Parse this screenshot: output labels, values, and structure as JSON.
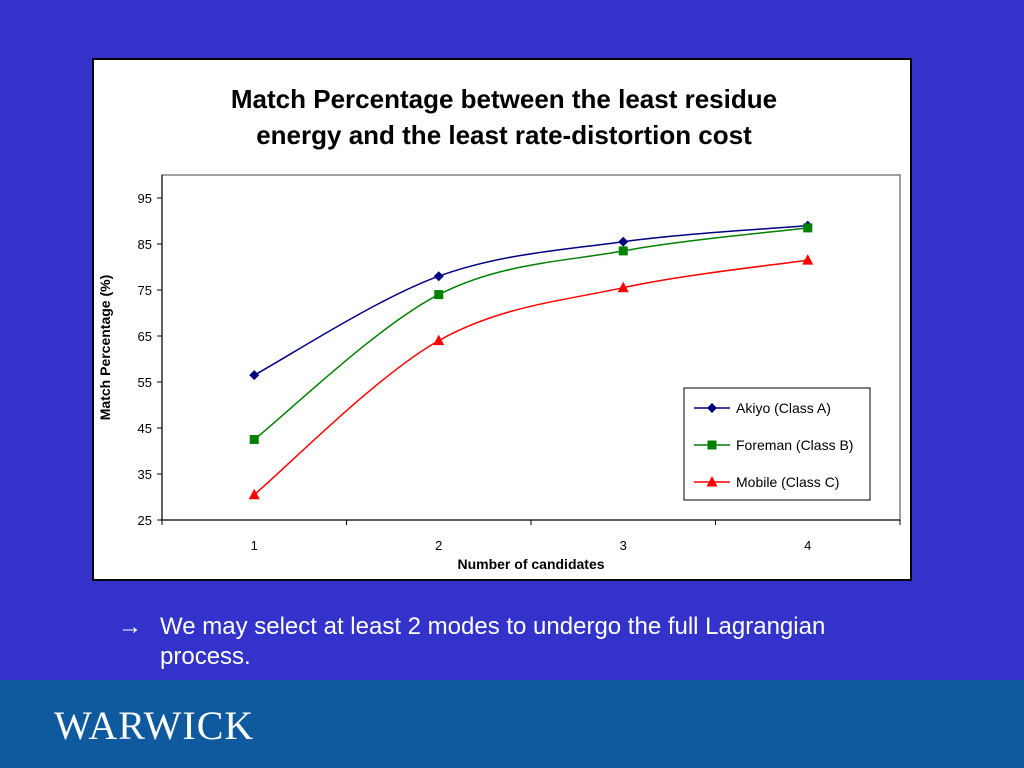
{
  "chart_data": {
    "type": "line",
    "title": [
      "Match Percentage between the least residue",
      "energy and the least rate-distortion cost"
    ],
    "xlabel": "Number of candidates",
    "ylabel": "Match Percentage (%)",
    "categories": [
      "1",
      "2",
      "3",
      "4"
    ],
    "x": [
      1,
      2,
      3,
      4
    ],
    "ylim": [
      25,
      100
    ],
    "yticks": [
      25,
      35,
      45,
      55,
      65,
      75,
      85,
      95
    ],
    "grid": false,
    "legend_position": "bottom-right",
    "series": [
      {
        "name": "Akiyo (Class A)",
        "values": [
          56.5,
          78,
          85.5,
          89
        ],
        "color": "#000080",
        "marker": "diamond"
      },
      {
        "name": "Foreman (Class B)",
        "values": [
          42.5,
          74,
          83.5,
          88.5
        ],
        "color": "#008000",
        "marker": "square"
      },
      {
        "name": "Mobile (Class C)",
        "values": [
          30.5,
          64,
          75.5,
          81.5
        ],
        "color": "#ff0000",
        "marker": "triangle"
      }
    ]
  },
  "bullet": {
    "arrow": "→",
    "text": "We may select at least 2 modes to undergo the full Lagrangian process."
  },
  "footer": {
    "logo_text": "WARWICK",
    "background_color": "#0f5a9e"
  },
  "colors": {
    "slide_background": "#3333cc"
  }
}
